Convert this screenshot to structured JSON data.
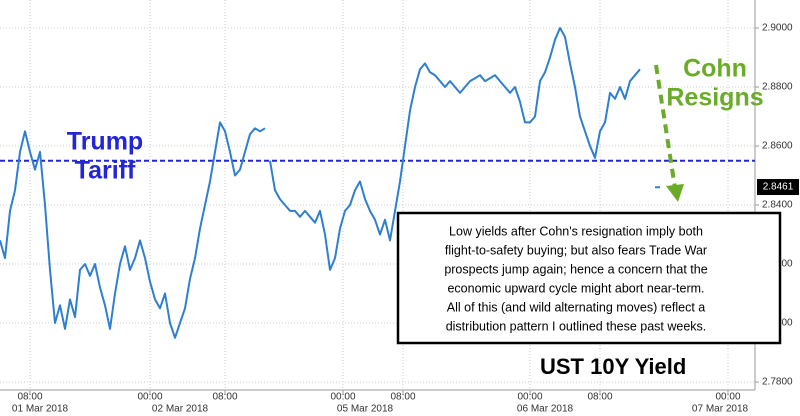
{
  "chart_data": {
    "type": "line",
    "title": "UST 10Y Yield",
    "x": [
      0,
      5,
      10,
      15,
      20,
      25,
      30,
      35,
      40,
      45,
      50,
      55,
      60,
      65,
      70,
      75,
      80,
      85,
      90,
      95,
      100,
      105,
      110,
      115,
      120,
      125,
      130,
      135,
      140,
      145,
      150,
      155,
      160,
      165,
      170,
      175,
      180,
      185,
      190,
      195,
      200,
      205,
      210,
      215,
      220,
      225,
      230,
      235,
      240,
      245,
      250,
      255,
      260,
      265,
      267.5,
      270,
      275,
      280,
      285,
      290,
      295,
      300,
      305,
      310,
      315,
      320,
      325,
      330,
      335,
      340,
      345,
      350,
      355,
      360,
      365,
      370,
      375,
      380,
      385,
      390,
      395,
      400,
      405,
      410,
      415,
      420,
      425,
      430,
      435,
      440,
      445,
      450,
      455,
      460,
      465,
      470,
      475,
      480,
      485,
      490,
      495,
      500,
      505,
      510,
      515,
      520,
      525,
      530,
      535,
      540,
      545,
      550,
      555,
      560,
      565,
      570,
      575,
      580,
      585,
      590,
      595,
      600,
      605,
      610,
      615,
      620,
      625,
      630,
      635,
      640,
      645,
      650,
      655,
      660
    ],
    "series": [
      {
        "name": "UST 10Y Yield",
        "color": "#2f7fd0",
        "values": [
          2.828,
          2.822,
          2.838,
          2.845,
          2.858,
          2.865,
          2.858,
          2.852,
          2.858,
          2.84,
          2.818,
          2.8,
          2.806,
          2.798,
          2.808,
          2.802,
          2.818,
          2.82,
          2.816,
          2.82,
          2.812,
          2.806,
          2.798,
          2.81,
          2.82,
          2.826,
          2.818,
          2.822,
          2.828,
          2.822,
          2.814,
          2.808,
          2.805,
          2.81,
          2.8,
          2.795,
          2.8,
          2.805,
          2.815,
          2.822,
          2.832,
          2.84,
          2.848,
          2.858,
          2.868,
          2.865,
          2.858,
          2.85,
          2.852,
          2.858,
          2.864,
          2.866,
          2.865,
          2.866,
          null,
          2.855,
          2.845,
          2.842,
          2.84,
          2.838,
          2.838,
          2.836,
          2.838,
          2.836,
          2.834,
          2.838,
          2.83,
          2.818,
          2.822,
          2.832,
          2.838,
          2.84,
          2.845,
          2.848,
          2.842,
          2.838,
          2.835,
          2.83,
          2.835,
          2.828,
          2.838,
          2.848,
          2.86,
          2.872,
          2.88,
          2.886,
          2.888,
          2.885,
          2.884,
          2.882,
          2.88,
          2.882,
          2.88,
          2.878,
          2.88,
          2.882,
          2.883,
          2.884,
          2.882,
          2.883,
          2.884,
          2.882,
          2.88,
          2.878,
          2.88,
          2.875,
          2.868,
          2.868,
          2.87,
          2.882,
          2.885,
          2.89,
          2.896,
          2.9,
          2.897,
          2.888,
          2.88,
          2.87,
          2.865,
          2.86,
          2.856,
          2.865,
          2.868,
          2.878,
          2.876,
          2.88,
          2.876,
          2.882,
          2.884,
          2.886,
          null,
          null,
          2.846,
          2.846
        ]
      }
    ],
    "xlim": [
      0,
      755
    ],
    "xticks": [
      {
        "value": 30,
        "label": "08:00"
      },
      {
        "value": 150,
        "label": "00:00"
      },
      {
        "value": 225,
        "label": "08:00"
      },
      {
        "value": 343,
        "label": "00:00"
      },
      {
        "value": 403,
        "label": "08:00"
      },
      {
        "value": 530,
        "label": "00:00"
      },
      {
        "value": 600,
        "label": "08:00"
      },
      {
        "value": 728,
        "label": "00:00"
      }
    ],
    "x_date_labels": [
      {
        "value": 40,
        "label": "01 Mar 2018"
      },
      {
        "value": 180,
        "label": "02 Mar 2018"
      },
      {
        "value": 365,
        "label": "05 Mar 2018"
      },
      {
        "value": 545,
        "label": "06 Mar 2018"
      },
      {
        "value": 720,
        "label": "07 Mar 2018"
      }
    ],
    "ylim": [
      2.7773,
      2.9095
    ],
    "yticks": [
      {
        "value": 2.78,
        "label": "2.7800"
      },
      {
        "value": 2.8,
        "label": "2.8000"
      },
      {
        "value": 2.82,
        "label": "2.8200"
      },
      {
        "value": 2.84,
        "label": "2.8400"
      },
      {
        "value": 2.86,
        "label": "2.8600"
      },
      {
        "value": 2.88,
        "label": "2.8800"
      },
      {
        "value": 2.9,
        "label": "2.9000"
      }
    ],
    "grid": true,
    "last_value": 2.8461,
    "reference_line": {
      "value": 2.855,
      "color": "#2424d8"
    },
    "annotations": [
      {
        "lines": [
          "Trump",
          "Tariff"
        ],
        "color": "#2424d8"
      },
      {
        "lines": [
          "Cohn",
          "Resigns"
        ],
        "color": "#6aac2a"
      }
    ],
    "note_lines": [
      "Low yields after Cohn's resignation imply both",
      "flight-to-safety buying; but also fears Trade War",
      "prospects jump again; hence a concern that the",
      "economic upward cycle might abort near-term.",
      "All of this (and wild alternating moves) reflect a",
      "distribution pattern I outlined these past weeks."
    ]
  }
}
